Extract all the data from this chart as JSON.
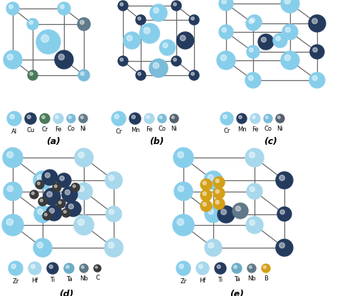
{
  "background": "#ffffff",
  "line_color": "#666666",
  "colors": {
    "Cr_a": "#87CEEB",
    "Al": "#87CEEB",
    "Cu": "#243B5E",
    "Cr": "#4A7A5A",
    "Fe": "#A8D8EC",
    "Co": "#7ABCDA",
    "Ni": "#607A8A",
    "Cr_b": "#7ABCDA",
    "Mn": "#243B5E",
    "Fe_b": "#A8D8EC",
    "Co_b": "#7ABCDA",
    "Ni_b": "#556070",
    "Zr": "#87CEEB",
    "Hf": "#A8D8EC",
    "Ti": "#243B5E",
    "Ta": "#6BADC8",
    "Nb": "#607888",
    "C": "#3A3A3A",
    "B": "#D4A017"
  },
  "legend_a": {
    "items": [
      "Al",
      "Cu",
      "Cr",
      "Fe",
      "Co",
      "Ni"
    ],
    "colors": [
      "#87CEEB",
      "#243B5E",
      "#4A7A5A",
      "#A8D8EC",
      "#7ABCDA",
      "#607A8A"
    ],
    "sizes": [
      10,
      8,
      7,
      7,
      6,
      6
    ]
  },
  "legend_b": {
    "items": [
      "Cr",
      "Mn",
      "Fe",
      "Co",
      "Ni"
    ],
    "colors": [
      "#87CEEB",
      "#243B5E",
      "#A8D8EC",
      "#7ABCDA",
      "#556070"
    ],
    "sizes": [
      10,
      8,
      7,
      6,
      6
    ]
  },
  "legend_c": {
    "items": [
      "Cr",
      "Mn",
      "Fe",
      "Co",
      "Ni"
    ],
    "colors": [
      "#87CEEB",
      "#243B5E",
      "#A8D8EC",
      "#7ABCDA",
      "#556070"
    ],
    "sizes": [
      9,
      7,
      7,
      6,
      6
    ]
  },
  "legend_d": {
    "items": [
      "Zr",
      "Hf",
      "Ti",
      "Ta",
      "Nb",
      "C"
    ],
    "colors": [
      "#87CEEB",
      "#A8D8EC",
      "#243B5E",
      "#6BADC8",
      "#607888",
      "#3A3A3A"
    ],
    "sizes": [
      10,
      9,
      8,
      7,
      6,
      5
    ]
  },
  "legend_e": {
    "items": [
      "Zr",
      "Hf",
      "Ti",
      "Ta",
      "Nb",
      "B"
    ],
    "colors": [
      "#87CEEB",
      "#A8D8EC",
      "#243B5E",
      "#6BADC8",
      "#607888",
      "#D4A017"
    ],
    "sizes": [
      10,
      9,
      8,
      7,
      6,
      6
    ]
  }
}
